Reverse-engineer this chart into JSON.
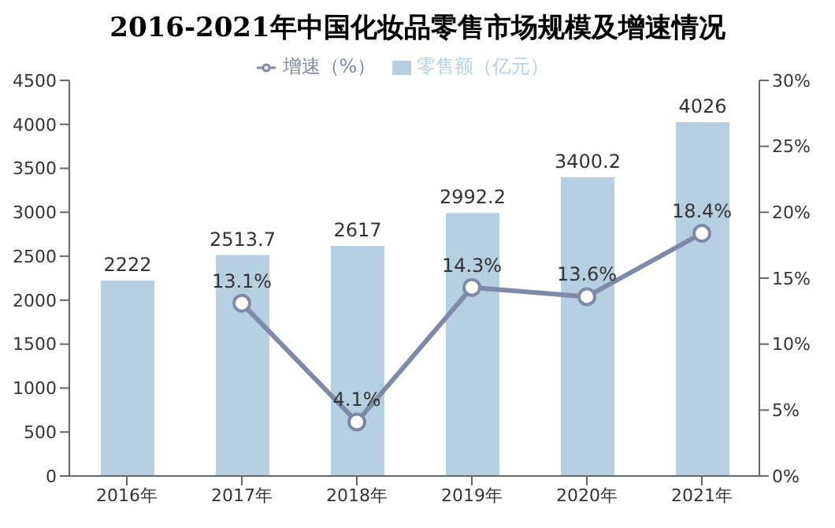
{
  "chart_data": {
    "type": "bar",
    "title": "2016-2021年中国化妆品零售市场规模及增速情况",
    "categories": [
      "2016年",
      "2017年",
      "2018年",
      "2019年",
      "2020年",
      "2021年"
    ],
    "series": [
      {
        "name": "零售额（亿元）",
        "color": "#b7d0e1",
        "values": [
          2222,
          2513.7,
          2617,
          2992.2,
          3400.2,
          4026
        ],
        "value_labels": [
          "2222",
          "2513.7",
          "2617",
          "2992.2",
          "3400.2",
          "4026"
        ]
      },
      {
        "name": "增速（%）",
        "type": "line",
        "axis": "y2",
        "color": "#7f8aa8",
        "marker": "circle",
        "values": [
          null,
          13.1,
          4.1,
          14.3,
          13.6,
          18.4
        ],
        "value_labels": [
          null,
          "13.1%",
          "4.1%",
          "14.3%",
          "13.6%",
          "18.4%"
        ]
      }
    ],
    "ylim": [
      0,
      4500
    ],
    "yticks": [
      0,
      500,
      1000,
      1500,
      2000,
      2500,
      3000,
      3500,
      4000,
      4500
    ],
    "y2lim": [
      0,
      30
    ],
    "y2ticks": [
      {
        "value": 0,
        "label": "0%"
      },
      {
        "value": 5,
        "label": "5%"
      },
      {
        "value": 10,
        "label": "10%"
      },
      {
        "value": 15,
        "label": "15%"
      },
      {
        "value": 20,
        "label": "20%"
      },
      {
        "value": 25,
        "label": "25%"
      },
      {
        "value": 30,
        "label": "30%"
      }
    ],
    "grid": false,
    "legend": "top"
  }
}
